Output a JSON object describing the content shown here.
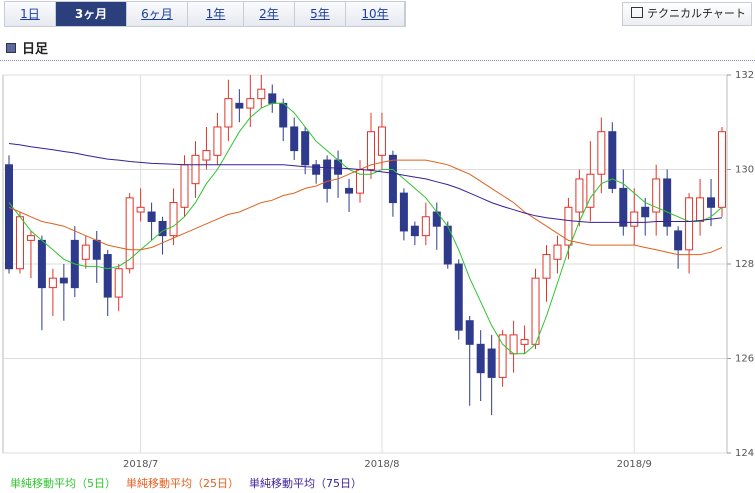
{
  "tabs": [
    "1日",
    "3ヶ月",
    "6ヶ月",
    "1年",
    "2年",
    "5年",
    "10年"
  ],
  "selected_tab": 1,
  "button": "テクニカルチャート",
  "section_title": "日足",
  "chart_data": {
    "type": "candlestick",
    "categories": [
      null,
      null,
      null,
      null,
      null,
      null,
      null,
      null,
      null,
      null,
      null,
      null,
      "2018/7",
      null,
      null,
      null,
      null,
      null,
      null,
      null,
      null,
      null,
      null,
      null,
      null,
      null,
      null,
      null,
      null,
      null,
      null,
      null,
      null,
      null,
      "2018/8",
      null,
      null,
      null,
      null,
      null,
      null,
      null,
      null,
      null,
      null,
      null,
      null,
      null,
      null,
      null,
      null,
      null,
      null,
      null,
      null,
      null,
      null,
      "2018/9",
      null,
      null,
      null,
      null,
      null,
      null,
      null,
      null
    ],
    "open": [
      130.1,
      127.9,
      128.5,
      128.5,
      127.5,
      127.7,
      128.5,
      128.1,
      128.5,
      128.2,
      127.3,
      127.9,
      129.1,
      129.1,
      128.9,
      128.6,
      129.2,
      129.7,
      130.2,
      130.3,
      130.9,
      131.4,
      131.3,
      131.5,
      131.6,
      131.4,
      130.9,
      130.8,
      130.1,
      130.2,
      130.2,
      129.6,
      129.5,
      130.0,
      130.3,
      130.3,
      129.5,
      128.8,
      128.6,
      129.1,
      128.8,
      128.0,
      126.8,
      126.3,
      126.2,
      125.6,
      126.1,
      126.3,
      126.3,
      127.7,
      128.1,
      128.4,
      129.1,
      129.2,
      129.9,
      130.8,
      129.6,
      128.8,
      129.2,
      129.1,
      129.8,
      128.7,
      128.3,
      128.9,
      129.4,
      129.2
    ],
    "high": [
      130.3,
      129.1,
      128.7,
      128.6,
      127.9,
      128.0,
      128.8,
      128.6,
      128.7,
      128.3,
      128.0,
      129.5,
      129.6,
      129.3,
      129.0,
      129.6,
      130.3,
      130.6,
      130.9,
      131.2,
      131.9,
      131.7,
      132.0,
      132.0,
      131.8,
      131.5,
      131.1,
      130.9,
      130.2,
      130.3,
      130.4,
      129.8,
      130.2,
      131.2,
      131.2,
      130.4,
      129.6,
      128.9,
      129.3,
      129.3,
      128.9,
      128.1,
      126.9,
      126.6,
      126.5,
      126.6,
      126.8,
      126.7,
      127.9,
      128.4,
      128.6,
      129.4,
      130.0,
      130.6,
      131.1,
      131.0,
      130.0,
      129.6,
      129.4,
      130.1,
      130.0,
      128.8,
      129.5,
      129.8,
      129.8,
      130.9
    ],
    "low": [
      127.8,
      127.8,
      127.7,
      126.6,
      126.9,
      126.8,
      127.3,
      127.9,
      127.6,
      126.9,
      127.0,
      127.8,
      128.9,
      128.5,
      128.2,
      128.4,
      129.0,
      129.4,
      130.0,
      130.1,
      130.6,
      131.0,
      130.9,
      131.3,
      131.2,
      130.6,
      130.2,
      129.9,
      129.7,
      129.3,
      129.4,
      129.1,
      129.3,
      129.8,
      130.0,
      129.0,
      128.5,
      128.4,
      128.4,
      128.3,
      127.9,
      126.4,
      125.0,
      125.1,
      124.8,
      125.4,
      125.7,
      126.1,
      126.2,
      127.2,
      127.8,
      128.1,
      128.8,
      128.9,
      129.5,
      129.5,
      128.6,
      128.4,
      128.6,
      128.6,
      128.6,
      127.9,
      127.8,
      128.6,
      128.8,
      129.0
    ],
    "close": [
      127.9,
      129.0,
      128.6,
      127.5,
      127.7,
      127.6,
      127.5,
      128.4,
      128.1,
      127.3,
      127.9,
      129.4,
      129.2,
      128.9,
      128.6,
      129.3,
      130.1,
      130.3,
      130.4,
      130.9,
      131.5,
      131.3,
      131.5,
      131.7,
      131.4,
      130.9,
      130.4,
      130.1,
      129.9,
      129.6,
      129.9,
      129.5,
      130.0,
      130.8,
      130.9,
      129.3,
      128.7,
      128.6,
      129.0,
      128.8,
      128.0,
      126.6,
      126.3,
      125.7,
      125.6,
      126.5,
      126.5,
      126.4,
      127.7,
      128.2,
      128.4,
      129.2,
      129.8,
      129.9,
      130.8,
      129.6,
      128.8,
      129.1,
      129.0,
      129.8,
      128.8,
      128.3,
      129.4,
      129.4,
      129.2,
      130.8
    ],
    "up_color": "#e0342a",
    "down_color": "#2e3a8c",
    "moving_averages": [
      {
        "name": "単純移動平均（5日）",
        "color": "#2fc42f",
        "values": [
          129.3,
          129.0,
          128.7,
          128.5,
          128.3,
          128.1,
          128.0,
          127.95,
          127.95,
          127.9,
          127.95,
          128.1,
          128.3,
          128.5,
          128.7,
          128.8,
          129.0,
          129.3,
          129.7,
          130.0,
          130.4,
          130.8,
          131.1,
          131.3,
          131.4,
          131.4,
          131.2,
          130.9,
          130.6,
          130.4,
          130.2,
          130.0,
          129.9,
          129.9,
          130.0,
          130.0,
          129.8,
          129.6,
          129.4,
          129.1,
          128.8,
          128.3,
          127.7,
          127.2,
          126.7,
          126.3,
          126.1,
          126.1,
          126.3,
          126.9,
          127.6,
          128.3,
          128.9,
          129.4,
          129.7,
          129.8,
          129.7,
          129.5,
          129.3,
          129.2,
          129.1,
          129.0,
          128.9,
          128.9,
          129.0,
          129.2
        ]
      },
      {
        "name": "単純移動平均（25日）",
        "color": "#e0601e",
        "values": [
          129.2,
          129.1,
          129.0,
          128.9,
          128.85,
          128.8,
          128.7,
          128.6,
          128.5,
          128.4,
          128.35,
          128.3,
          128.3,
          128.35,
          128.45,
          128.55,
          128.65,
          128.75,
          128.85,
          128.95,
          129.05,
          129.1,
          129.2,
          129.3,
          129.35,
          129.45,
          129.5,
          129.6,
          129.65,
          129.75,
          129.8,
          129.9,
          130.0,
          130.1,
          130.15,
          130.2,
          130.2,
          130.2,
          130.2,
          130.15,
          130.1,
          130.0,
          129.9,
          129.75,
          129.6,
          129.45,
          129.3,
          129.1,
          128.95,
          128.8,
          128.65,
          128.5,
          128.45,
          128.4,
          128.4,
          128.4,
          128.4,
          128.4,
          128.35,
          128.3,
          128.25,
          128.2,
          128.2,
          128.2,
          128.25,
          128.35
        ]
      },
      {
        "name": "単純移動平均（75日）",
        "color": "#3a1f96",
        "values": [
          130.55,
          130.52,
          130.48,
          130.45,
          130.42,
          130.38,
          130.35,
          130.3,
          130.26,
          130.22,
          130.2,
          130.17,
          130.15,
          130.13,
          130.12,
          130.11,
          130.1,
          130.1,
          130.1,
          130.1,
          130.1,
          130.1,
          130.1,
          130.1,
          130.1,
          130.1,
          130.08,
          130.06,
          130.05,
          130.04,
          130.03,
          130.02,
          130.0,
          129.98,
          129.95,
          129.92,
          129.88,
          129.84,
          129.8,
          129.74,
          129.68,
          129.6,
          129.5,
          129.4,
          129.3,
          129.22,
          129.15,
          129.08,
          129.02,
          128.98,
          128.95,
          128.92,
          128.9,
          128.88,
          128.88,
          128.88,
          128.88,
          128.88,
          128.88,
          128.9,
          128.9,
          128.9,
          128.9,
          128.92,
          128.95,
          128.98
        ]
      }
    ],
    "ylim": [
      124,
      132
    ],
    "yticks": [
      124,
      126,
      128,
      130,
      132
    ],
    "grid": true
  }
}
